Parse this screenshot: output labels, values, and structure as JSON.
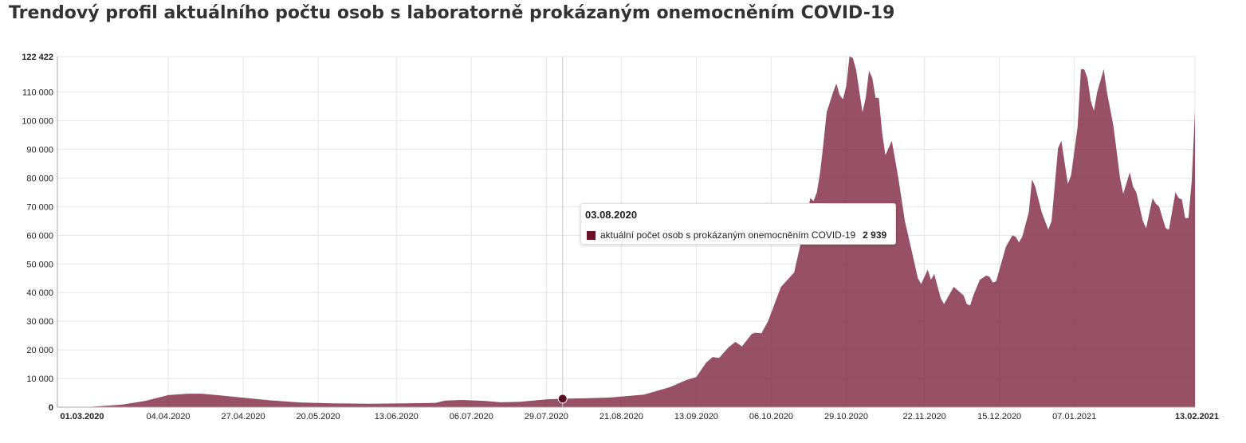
{
  "title": "Trendový profil aktuálního počtu osob s laboratorně prokázaným onemocněním COVID-19",
  "chart_data": {
    "type": "area",
    "title": "Trendový profil aktuálního počtu osob s laboratorně prokázaným onemocněním COVID-19",
    "series": [
      {
        "name": "aktuální počet osob s prokázaným onemocněním COVID-19",
        "color": "#7a1f3a",
        "points": [
          [
            "01.03.2020",
            0
          ],
          [
            "11.03.2020",
            100
          ],
          [
            "21.03.2020",
            900
          ],
          [
            "28.03.2020",
            2200
          ],
          [
            "04.04.2020",
            4200
          ],
          [
            "10.04.2020",
            4700
          ],
          [
            "14.04.2020",
            4700
          ],
          [
            "20.04.2020",
            4100
          ],
          [
            "27.04.2020",
            3300
          ],
          [
            "05.05.2020",
            2400
          ],
          [
            "15.05.2020",
            1600
          ],
          [
            "25.05.2020",
            1300
          ],
          [
            "05.06.2020",
            1200
          ],
          [
            "15.06.2020",
            1300
          ],
          [
            "25.06.2020",
            1500
          ],
          [
            "28.06.2020",
            2300
          ],
          [
            "03.07.2020",
            2500
          ],
          [
            "10.07.2020",
            2200
          ],
          [
            "15.07.2020",
            1700
          ],
          [
            "21.07.2020",
            1900
          ],
          [
            "29.07.2020",
            2700
          ],
          [
            "03.08.2020",
            2939
          ],
          [
            "10.08.2020",
            3100
          ],
          [
            "18.08.2020",
            3400
          ],
          [
            "28.08.2020",
            4400
          ],
          [
            "05.09.2020",
            7000
          ],
          [
            "10.09.2020",
            9500
          ],
          [
            "13.09.2020",
            10500
          ],
          [
            "16.09.2020",
            15500
          ],
          [
            "18.09.2020",
            17500
          ],
          [
            "20.09.2020",
            17200
          ],
          [
            "23.09.2020",
            21000
          ],
          [
            "25.09.2020",
            22800
          ],
          [
            "27.09.2020",
            21200
          ],
          [
            "30.09.2020",
            25500
          ],
          [
            "01.10.2020",
            26000
          ],
          [
            "03.10.2020",
            25800
          ],
          [
            "05.10.2020",
            30000
          ],
          [
            "07.10.2020",
            36000
          ],
          [
            "09.10.2020",
            42000
          ],
          [
            "11.10.2020",
            44500
          ],
          [
            "13.10.2020",
            47000
          ],
          [
            "14.10.2020",
            52000
          ],
          [
            "16.10.2020",
            62000
          ],
          [
            "18.10.2020",
            73000
          ],
          [
            "19.10.2020",
            72000
          ],
          [
            "20.10.2020",
            75000
          ],
          [
            "21.10.2020",
            82000
          ],
          [
            "22.10.2020",
            92000
          ],
          [
            "23.10.2020",
            103000
          ],
          [
            "25.10.2020",
            110000
          ],
          [
            "26.10.2020",
            113000
          ],
          [
            "27.10.2020",
            109000
          ],
          [
            "28.10.2020",
            107500
          ],
          [
            "29.10.2020",
            112000
          ],
          [
            "30.10.2020",
            122422
          ],
          [
            "31.10.2020",
            122000
          ],
          [
            "01.11.2020",
            118000
          ],
          [
            "03.11.2020",
            103000
          ],
          [
            "04.11.2020",
            108000
          ],
          [
            "05.11.2020",
            117500
          ],
          [
            "06.11.2020",
            115000
          ],
          [
            "07.11.2020",
            108000
          ],
          [
            "08.11.2020",
            108000
          ],
          [
            "09.11.2020",
            96000
          ],
          [
            "10.11.2020",
            88000
          ],
          [
            "12.11.2020",
            93000
          ],
          [
            "14.11.2020",
            80000
          ],
          [
            "16.11.2020",
            65000
          ],
          [
            "18.11.2020",
            55000
          ],
          [
            "20.11.2020",
            45000
          ],
          [
            "21.11.2020",
            43000
          ],
          [
            "23.11.2020",
            48000
          ],
          [
            "24.11.2020",
            44500
          ],
          [
            "25.11.2020",
            46500
          ],
          [
            "27.11.2020",
            38000
          ],
          [
            "28.11.2020",
            36000
          ],
          [
            "30.11.2020",
            40000
          ],
          [
            "01.12.2020",
            42000
          ],
          [
            "04.12.2020",
            39000
          ],
          [
            "05.12.2020",
            36000
          ],
          [
            "06.12.2020",
            35500
          ],
          [
            "07.12.2020",
            39000
          ],
          [
            "09.12.2020",
            44500
          ],
          [
            "11.12.2020",
            46000
          ],
          [
            "12.12.2020",
            45500
          ],
          [
            "13.12.2020",
            43500
          ],
          [
            "14.12.2020",
            44000
          ],
          [
            "17.12.2020",
            56000
          ],
          [
            "19.12.2020",
            60000
          ],
          [
            "20.12.2020",
            59500
          ],
          [
            "21.12.2020",
            57500
          ],
          [
            "22.12.2020",
            59500
          ],
          [
            "24.12.2020",
            68000
          ],
          [
            "25.12.2020",
            79500
          ],
          [
            "26.12.2020",
            77000
          ],
          [
            "28.12.2020",
            68000
          ],
          [
            "30.12.2020",
            62000
          ],
          [
            "31.12.2020",
            65000
          ],
          [
            "02.01.2021",
            90500
          ],
          [
            "03.01.2021",
            93000
          ],
          [
            "05.01.2021",
            78000
          ],
          [
            "06.01.2021",
            81000
          ],
          [
            "08.01.2021",
            98000
          ],
          [
            "09.01.2021",
            118000
          ],
          [
            "10.01.2021",
            118000
          ],
          [
            "11.01.2021",
            115000
          ],
          [
            "12.01.2021",
            107000
          ],
          [
            "13.01.2021",
            103500
          ],
          [
            "14.01.2021",
            110000
          ],
          [
            "16.01.2021",
            118000
          ],
          [
            "17.01.2021",
            110000
          ],
          [
            "19.01.2021",
            98000
          ],
          [
            "21.01.2021",
            80000
          ],
          [
            "22.01.2021",
            74500
          ],
          [
            "24.01.2021",
            82000
          ],
          [
            "25.01.2021",
            77000
          ],
          [
            "26.01.2021",
            75000
          ],
          [
            "28.01.2021",
            65000
          ],
          [
            "29.01.2021",
            62500
          ],
          [
            "31.01.2021",
            73000
          ],
          [
            "01.02.2021",
            71000
          ],
          [
            "02.02.2021",
            70000
          ],
          [
            "04.02.2021",
            62500
          ],
          [
            "05.02.2021",
            62000
          ],
          [
            "07.02.2021",
            75000
          ],
          [
            "08.02.2021",
            73000
          ],
          [
            "09.02.2021",
            72500
          ],
          [
            "10.02.2021",
            66000
          ],
          [
            "11.02.2021",
            66000
          ],
          [
            "12.02.2021",
            79000
          ],
          [
            "13.02.2021",
            103500
          ]
        ]
      }
    ],
    "x_axis": {
      "range": [
        "01.03.2020",
        "13.02.2021"
      ],
      "tick_labels": [
        "01.03.2020",
        "04.04.2020",
        "27.04.2020",
        "20.05.2020",
        "13.06.2020",
        "06.07.2020",
        "29.07.2020",
        "21.08.2020",
        "13.09.2020",
        "06.10.2020",
        "29.10.2020",
        "22.11.2020",
        "15.12.2020",
        "07.01.2021",
        "13.02.2021"
      ],
      "bold_labels": [
        "01.03.2020",
        "13.02.2021"
      ]
    },
    "y_axis": {
      "range": [
        0,
        122422
      ],
      "tick_values": [
        0,
        10000,
        20000,
        30000,
        40000,
        50000,
        60000,
        70000,
        80000,
        90000,
        100000,
        110000,
        122422
      ],
      "tick_labels": [
        "0",
        "10 000",
        "20 000",
        "30 000",
        "40 000",
        "50 000",
        "60 000",
        "70 000",
        "80 000",
        "90 000",
        "100 000",
        "110 000",
        "122 422"
      ],
      "bold_labels": [
        "0",
        "122 422"
      ]
    },
    "grid": true,
    "legend": "none",
    "highlight": {
      "date": "03.08.2020",
      "label": "aktuální počet osob s prokázaným onemocněním COVID-19",
      "value_text": "2 939",
      "value": 2939
    }
  }
}
